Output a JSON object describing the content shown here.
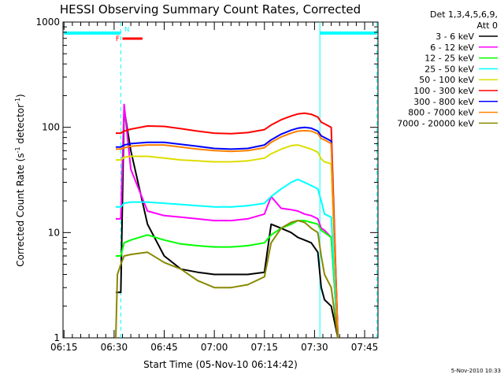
{
  "chart_data": {
    "type": "line",
    "title": "HESSI Observing Summary Count Rates, Corrected",
    "xlabel": "Start Time (05-Nov-10 06:14:42)",
    "ylabel": "Corrected Count Rate (s",
    "ylabel_sup": "-1",
    "ylabel_mid": " detector",
    "ylabel_sup2": "-1",
    "ylabel_end": ")",
    "y_scale": "log",
    "ylim": [
      1,
      1000
    ],
    "y_ticks": [
      1,
      10,
      100,
      1000
    ],
    "y_tick_labels": [
      "1",
      "10",
      "100",
      "1000"
    ],
    "x_ticks": [
      "06:15",
      "06:30",
      "06:45",
      "07:00",
      "07:15",
      "07:30",
      "07:45"
    ],
    "x_tick_minutes": [
      0,
      15,
      30,
      45,
      60,
      75,
      90
    ],
    "xlim_minutes": [
      -0.3,
      94
    ],
    "x_time_origin": "06:15",
    "legend_header": [
      "Det 1,3,4,5,6,9,",
      "Att 0"
    ],
    "legend_position": "right",
    "timestamp": "5-Nov-2010 10:33",
    "flag_labels": {
      "night": "N",
      "flare": "F"
    },
    "flags": {
      "night_top": [
        [
          0,
          17
        ],
        [
          76.6,
          93.7
        ]
      ],
      "flare": [
        17.5,
        23.5
      ],
      "night_boundaries": [
        17,
        76.6,
        93.7
      ]
    },
    "series_x_minutes": [
      14,
      15.5,
      16,
      17,
      18,
      20,
      25,
      30,
      35,
      40,
      45,
      50,
      55,
      60,
      62,
      65,
      68,
      70,
      72,
      74,
      76,
      77,
      78,
      80,
      82,
      84
    ],
    "series": [
      {
        "name": "3 - 6 keV",
        "color": "#000000",
        "values": [
          null,
          2.7,
          2.7,
          2.7,
          150,
          60,
          12,
          6,
          4.5,
          4.2,
          4,
          4,
          4,
          4.2,
          12,
          11,
          10,
          9,
          8.5,
          8,
          6.5,
          3,
          2.3,
          2,
          1,
          null
        ]
      },
      {
        "name": "6 - 12 keV",
        "color": "#ff00ff",
        "values": [
          null,
          13.5,
          13.5,
          13.5,
          165,
          40,
          16,
          14.5,
          14,
          13.5,
          13,
          13,
          13.5,
          15,
          22,
          17,
          16.5,
          16,
          15,
          14.5,
          13.5,
          11,
          10.5,
          9,
          1,
          null
        ]
      },
      {
        "name": "12 - 25 keV",
        "color": "#00ff00",
        "values": [
          null,
          6,
          6,
          6,
          8,
          8.5,
          9.5,
          8.5,
          7.8,
          7.5,
          7.3,
          7.3,
          7.5,
          8,
          9.5,
          11,
          12,
          13,
          13,
          12.5,
          12,
          10.5,
          10,
          9,
          1,
          null
        ]
      },
      {
        "name": "25 - 50 keV",
        "color": "#00ffff",
        "values": [
          null,
          17.5,
          17.5,
          17.5,
          19,
          19.5,
          19.5,
          19,
          18.5,
          18,
          17.5,
          17.5,
          18,
          19,
          22,
          26,
          30,
          32,
          30,
          28,
          26,
          20,
          15,
          14,
          1,
          null
        ]
      },
      {
        "name": "50 - 100 keV",
        "color": "#dddd00",
        "values": [
          null,
          49,
          49,
          49,
          52,
          53,
          53,
          51,
          49,
          48,
          47,
          47,
          48,
          51,
          56,
          62,
          67,
          68,
          65,
          62,
          58,
          50,
          47,
          45,
          1,
          null
        ]
      },
      {
        "name": "100 - 300 keV",
        "color": "#ff0000",
        "values": [
          null,
          88,
          88,
          88,
          92,
          96,
          103,
          102,
          97,
          92,
          88,
          87,
          89,
          95,
          105,
          118,
          128,
          134,
          136,
          133,
          125,
          112,
          108,
          100,
          1,
          null
        ]
      },
      {
        "name": "300 - 800 keV",
        "color": "#0000ff",
        "values": [
          null,
          65,
          65,
          65,
          68,
          70,
          72,
          72,
          69,
          66,
          63,
          62,
          63,
          68,
          76,
          86,
          94,
          98,
          100,
          98,
          92,
          83,
          80,
          74,
          1,
          null
        ]
      },
      {
        "name": "800 - 7000 keV",
        "color": "#ff8000",
        "values": [
          null,
          62,
          62,
          62,
          64,
          66,
          68,
          68,
          65,
          62,
          60,
          59,
          60,
          64,
          72,
          81,
          88,
          92,
          93,
          92,
          87,
          78,
          76,
          70,
          1,
          null
        ]
      },
      {
        "name": "7000 - 20000 keV",
        "color": "#888800",
        "values": [
          null,
          1,
          4,
          5,
          6,
          6.2,
          6.5,
          5.2,
          4.5,
          3.5,
          3,
          3,
          3.2,
          3.8,
          8,
          11,
          12.5,
          13,
          12.5,
          11,
          10,
          6,
          4,
          3,
          1,
          null
        ]
      }
    ]
  }
}
